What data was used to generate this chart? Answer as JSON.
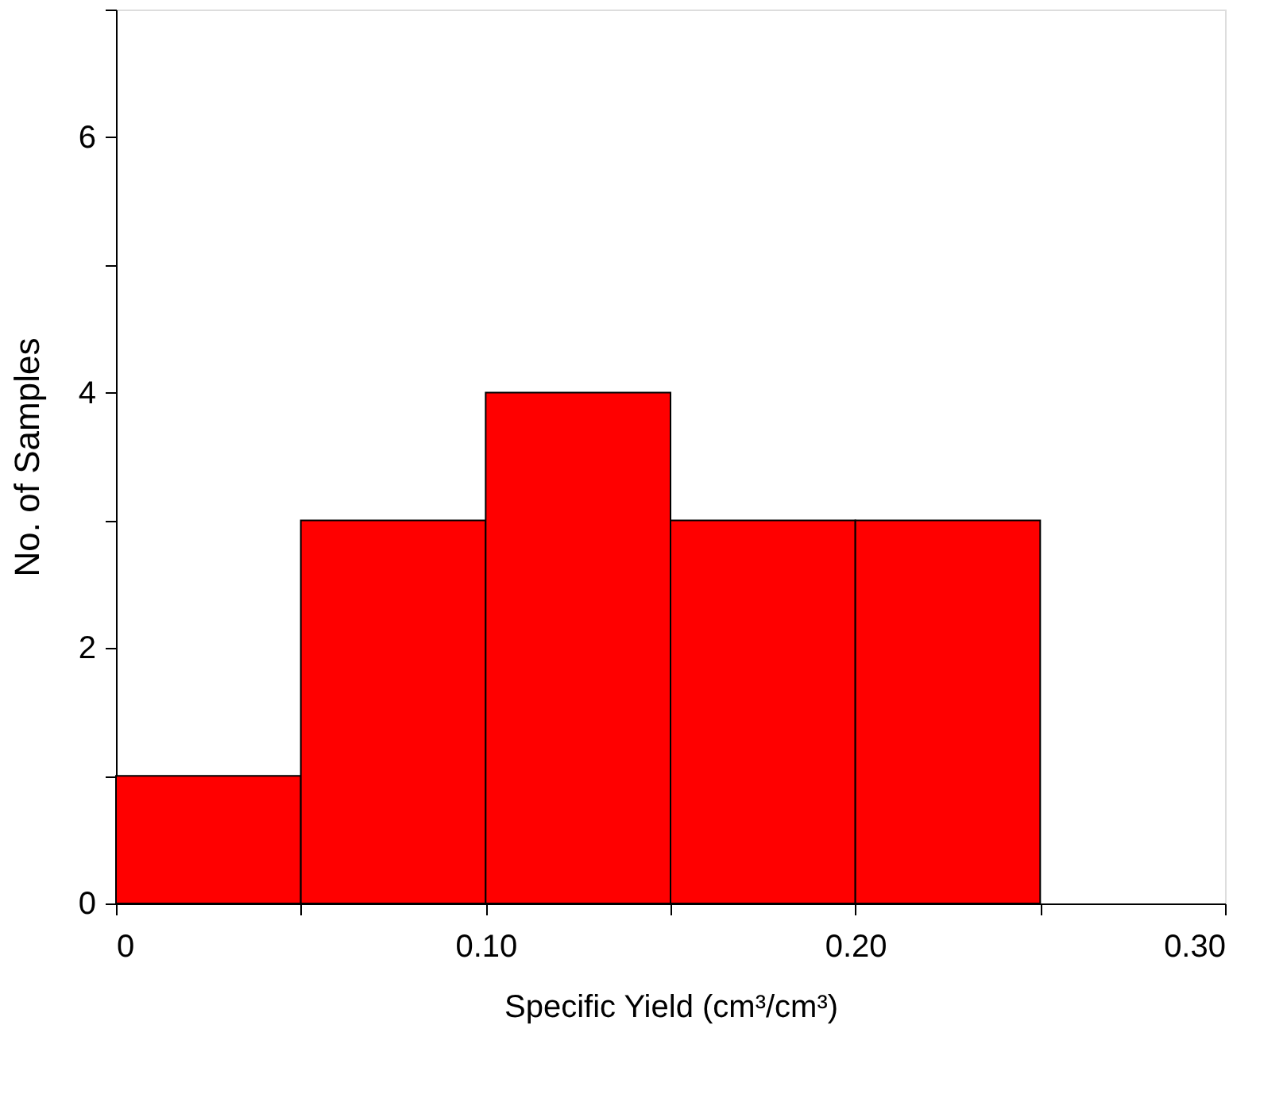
{
  "chart_data": {
    "type": "histogram",
    "xlabel": "Specific Yield (cm³/cm³)",
    "ylabel": "No. of Samples",
    "bins": [
      0,
      0.05,
      0.1,
      0.15,
      0.2,
      0.25
    ],
    "values": [
      1,
      3,
      4,
      3,
      3
    ],
    "color": "#ff0000",
    "xlim": [
      0,
      0.3
    ],
    "xticks": [
      0,
      {
        "value": 0.05,
        "label": null
      },
      {
        "value": 0.1,
        "label": "0.10"
      },
      {
        "value": 0.15,
        "label": null
      },
      {
        "value": 0.2,
        "label": "0.20"
      },
      {
        "value": 0.25,
        "label": null
      },
      {
        "value": 0.3,
        "label": "0.30"
      }
    ],
    "ylim": [
      0,
      7
    ],
    "yticks": [
      0,
      {
        "value": 1,
        "label": null
      },
      2,
      {
        "value": 3,
        "label": null
      },
      4,
      {
        "value": 5,
        "label": null
      },
      6,
      {
        "value": 7,
        "label": null
      }
    ],
    "grid": false
  }
}
